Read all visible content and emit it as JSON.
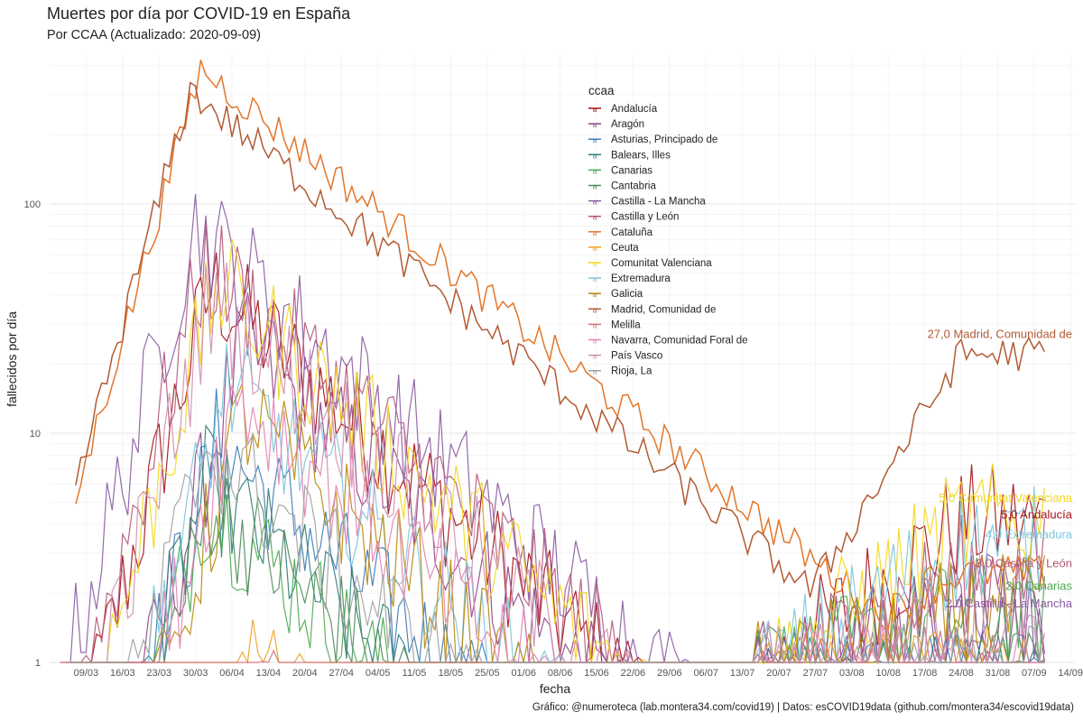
{
  "title": "Muertes por día por COVID-19 en España",
  "subtitle": "Por CCAA (Actualizado: 2020-09-09)",
  "caption": "Gráfico: @numeroteca (lab.montera34.com/covid19) | Datos: esCOVID19data (github.com/montera34/escovid19data)",
  "chart_data": {
    "type": "line",
    "xlabel": "fecha",
    "ylabel": "fallecidos por día",
    "yscale": "log",
    "ylim": [
      1,
      450
    ],
    "xlim": [
      "2020-03-02",
      "2020-09-15"
    ],
    "y_ticks": [
      1,
      10,
      100
    ],
    "y_tick_labels": [
      "1",
      "10",
      "100"
    ],
    "x_ticks": [
      "2020-03-09",
      "2020-03-16",
      "2020-03-23",
      "2020-03-30",
      "2020-04-06",
      "2020-04-13",
      "2020-04-20",
      "2020-04-27",
      "2020-05-04",
      "2020-05-11",
      "2020-05-18",
      "2020-05-25",
      "2020-06-01",
      "2020-06-08",
      "2020-06-15",
      "2020-06-22",
      "2020-06-29",
      "2020-07-06",
      "2020-07-13",
      "2020-07-20",
      "2020-07-27",
      "2020-08-03",
      "2020-08-10",
      "2020-08-17",
      "2020-08-24",
      "2020-08-31",
      "2020-09-07",
      "2020-09-14"
    ],
    "x_tick_labels": [
      "09/03",
      "16/03",
      "23/03",
      "30/03",
      "06/04",
      "13/04",
      "20/04",
      "27/04",
      "04/05",
      "11/05",
      "18/05",
      "25/05",
      "01/06",
      "08/06",
      "15/06",
      "22/06",
      "29/06",
      "06/07",
      "13/07",
      "20/07",
      "27/07",
      "03/08",
      "10/08",
      "17/08",
      "24/08",
      "31/08",
      "07/09",
      "14/09"
    ],
    "grid": true,
    "legend_title": "ccaa",
    "legend_position": "top-center",
    "series": [
      {
        "name": "Andalucía",
        "color": "#a50f15",
        "peak_date": "2020-04-02",
        "peak": 44,
        "end_value": 5
      },
      {
        "name": "Aragón",
        "color": "#8e4585",
        "peak_date": "2020-04-08",
        "peak": 24,
        "end_value": 2
      },
      {
        "name": "Asturias, Principado de",
        "color": "#3d7ab8",
        "peak_date": "2020-04-03",
        "peak": 9,
        "end_value": 1
      },
      {
        "name": "Balears, Illes",
        "color": "#2e7d7a",
        "peak_date": "2020-04-01",
        "peak": 6,
        "end_value": 1
      },
      {
        "name": "Canarias",
        "color": "#4aa84f",
        "peak_date": "2020-04-01",
        "peak": 5,
        "end_value": 2
      },
      {
        "name": "Cantabria",
        "color": "#4e8a5a",
        "peak_date": "2020-04-02",
        "peak": 5,
        "end_value": 1
      },
      {
        "name": "Castilla - La Mancha",
        "color": "#8a5aa0",
        "peak_date": "2020-03-30",
        "peak": 80,
        "end_value": 2
      },
      {
        "name": "Castilla y León",
        "color": "#b5567a",
        "peak_date": "2020-04-01",
        "peak": 55,
        "end_value": 3
      },
      {
        "name": "Cataluña",
        "color": "#e2762a",
        "peak_date": "2020-03-31",
        "peak": 390,
        "end_value": 3
      },
      {
        "name": "Ceuta",
        "color": "#f0a020",
        "peak_date": "2020-04-10",
        "peak": 1,
        "end_value": 1
      },
      {
        "name": "Comunitat Valenciana",
        "color": "#f3d71b",
        "peak_date": "2020-04-03",
        "peak": 45,
        "end_value": 5
      },
      {
        "name": "Extremadura",
        "color": "#7cc6dc",
        "peak_date": "2020-04-05",
        "peak": 16,
        "end_value": 4
      },
      {
        "name": "Galicia",
        "color": "#b8860b",
        "peak_date": "2020-04-08",
        "peak": 12,
        "end_value": 2
      },
      {
        "name": "Madrid, Comunidad de",
        "color": "#b25a34",
        "peak_date": "2020-03-29",
        "peak": 310,
        "end_value": 27
      },
      {
        "name": "Melilla",
        "color": "#d1707a",
        "peak_date": "2020-04-10",
        "peak": 1,
        "end_value": 1
      },
      {
        "name": "Navarra, Comunidad Foral de",
        "color": "#e283b5",
        "peak_date": "2020-04-07",
        "peak": 15,
        "end_value": 1
      },
      {
        "name": "País Vasco",
        "color": "#cf8fb0",
        "peak_date": "2020-04-02",
        "peak": 38,
        "end_value": 2
      },
      {
        "name": "Rioja, La",
        "color": "#a0a0a0",
        "peak_date": "2020-04-01",
        "peak": 9,
        "end_value": 1
      }
    ],
    "end_labels": [
      {
        "series": "Madrid, Comunidad de",
        "text": "27,0 Madrid, Comunidad de",
        "value": 27
      },
      {
        "series": "Comunitat Valenciana",
        "text": "5,0 Comunitat Valenciana",
        "value": 5.2
      },
      {
        "series": "Andalucía",
        "text": "5,0 Andalucía",
        "value": 4.4
      },
      {
        "series": "Extremadura",
        "text": "4,0 Extremadura",
        "value": 3.6
      },
      {
        "series": "Castilla y León",
        "text": "3,0 Castilla y León",
        "value": 2.7
      },
      {
        "series": "Canarias",
        "text": "2,0 Canarias",
        "value": 2.15
      },
      {
        "series": "Castilla - La Mancha",
        "text": "2,0 Castilla - La Mancha",
        "value": 1.8
      }
    ]
  }
}
